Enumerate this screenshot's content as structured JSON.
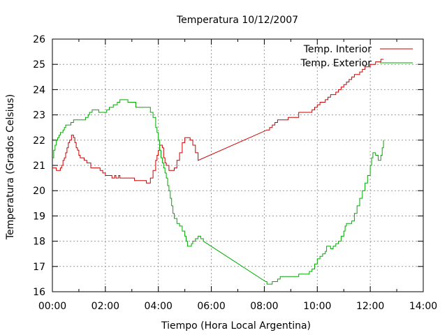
{
  "chart_data": {
    "type": "line",
    "title": "Temperatura 10/12/2007",
    "xlabel": "Tiempo (Hora Local Argentina)",
    "ylabel": "Temperatura (Grados Celsius)",
    "x_unit": "hours",
    "xlim": [
      0,
      14
    ],
    "ylim": [
      16,
      26
    ],
    "x_ticks": [
      0,
      2,
      4,
      6,
      8,
      10,
      12,
      14
    ],
    "x_tick_labels": [
      "00:00",
      "02:00",
      "04:00",
      "06:00",
      "08:00",
      "10:00",
      "12:00",
      "14:00"
    ],
    "y_ticks": [
      16,
      17,
      18,
      19,
      20,
      21,
      22,
      23,
      24,
      25,
      26
    ],
    "y_tick_labels": [
      "16",
      "17",
      "18",
      "19",
      "20",
      "21",
      "22",
      "23",
      "24",
      "25",
      "26"
    ],
    "grid": true,
    "legend_position": "top-right",
    "series": [
      {
        "name": "Temp. Interior",
        "color": "#cc0000",
        "step": true,
        "points": [
          [
            0.0,
            20.9
          ],
          [
            0.1,
            20.9
          ],
          [
            0.15,
            20.8
          ],
          [
            0.25,
            20.8
          ],
          [
            0.3,
            20.9
          ],
          [
            0.35,
            21.0
          ],
          [
            0.4,
            21.2
          ],
          [
            0.45,
            21.3
          ],
          [
            0.5,
            21.5
          ],
          [
            0.55,
            21.7
          ],
          [
            0.6,
            21.9
          ],
          [
            0.65,
            22.0
          ],
          [
            0.72,
            22.2
          ],
          [
            0.8,
            22.1
          ],
          [
            0.85,
            21.9
          ],
          [
            0.9,
            21.7
          ],
          [
            0.95,
            21.6
          ],
          [
            1.0,
            21.4
          ],
          [
            1.05,
            21.3
          ],
          [
            1.1,
            21.3
          ],
          [
            1.2,
            21.2
          ],
          [
            1.3,
            21.1
          ],
          [
            1.4,
            21.1
          ],
          [
            1.45,
            20.9
          ],
          [
            1.6,
            20.9
          ],
          [
            1.8,
            20.8
          ],
          [
            1.9,
            20.7
          ],
          [
            2.0,
            20.6
          ],
          [
            2.2,
            20.6
          ],
          [
            2.25,
            20.5
          ],
          [
            2.35,
            20.6
          ],
          [
            2.4,
            20.5
          ],
          [
            2.5,
            20.6
          ],
          [
            2.55,
            20.5
          ],
          [
            3.0,
            20.5
          ],
          [
            3.1,
            20.4
          ],
          [
            3.5,
            20.4
          ],
          [
            3.55,
            20.3
          ],
          [
            3.65,
            20.3
          ],
          [
            3.7,
            20.5
          ],
          [
            3.8,
            20.8
          ],
          [
            3.9,
            21.2
          ],
          [
            3.95,
            21.4
          ],
          [
            4.0,
            21.6
          ],
          [
            4.05,
            21.8
          ],
          [
            4.1,
            21.8
          ],
          [
            4.15,
            21.7
          ],
          [
            4.2,
            21.3
          ],
          [
            4.25,
            21.1
          ],
          [
            4.3,
            21.0
          ],
          [
            4.4,
            20.8
          ],
          [
            4.5,
            20.8
          ],
          [
            4.6,
            20.9
          ],
          [
            4.7,
            21.2
          ],
          [
            4.8,
            21.5
          ],
          [
            4.9,
            21.9
          ],
          [
            5.0,
            22.1
          ],
          [
            5.1,
            22.1
          ],
          [
            5.2,
            22.0
          ],
          [
            5.3,
            21.8
          ],
          [
            5.4,
            21.5
          ],
          [
            5.5,
            21.2
          ],
          [
            8.1,
            22.4
          ],
          [
            8.2,
            22.5
          ],
          [
            8.3,
            22.6
          ],
          [
            8.4,
            22.7
          ],
          [
            8.5,
            22.8
          ],
          [
            8.7,
            22.8
          ],
          [
            8.9,
            22.9
          ],
          [
            9.1,
            22.9
          ],
          [
            9.3,
            23.1
          ],
          [
            9.6,
            23.1
          ],
          [
            9.8,
            23.2
          ],
          [
            9.9,
            23.3
          ],
          [
            10.0,
            23.4
          ],
          [
            10.1,
            23.5
          ],
          [
            10.2,
            23.5
          ],
          [
            10.3,
            23.6
          ],
          [
            10.4,
            23.7
          ],
          [
            10.5,
            23.8
          ],
          [
            10.6,
            23.8
          ],
          [
            10.7,
            23.9
          ],
          [
            10.8,
            24.0
          ],
          [
            10.9,
            24.1
          ],
          [
            11.0,
            24.2
          ],
          [
            11.1,
            24.3
          ],
          [
            11.2,
            24.4
          ],
          [
            11.3,
            24.5
          ],
          [
            11.4,
            24.6
          ],
          [
            11.5,
            24.6
          ],
          [
            11.6,
            24.7
          ],
          [
            11.7,
            24.8
          ],
          [
            11.8,
            24.9
          ],
          [
            11.9,
            24.9
          ],
          [
            12.0,
            25.0
          ],
          [
            12.1,
            25.0
          ],
          [
            12.2,
            25.1
          ],
          [
            12.3,
            25.1
          ],
          [
            12.4,
            25.2
          ],
          [
            12.5,
            25.2
          ]
        ]
      },
      {
        "name": "Temp. Exterior",
        "color": "#00aa00",
        "step": true,
        "points": [
          [
            0.0,
            21.3
          ],
          [
            0.05,
            21.6
          ],
          [
            0.1,
            21.8
          ],
          [
            0.15,
            22.0
          ],
          [
            0.2,
            22.1
          ],
          [
            0.25,
            22.2
          ],
          [
            0.3,
            22.3
          ],
          [
            0.35,
            22.3
          ],
          [
            0.4,
            22.4
          ],
          [
            0.45,
            22.5
          ],
          [
            0.5,
            22.6
          ],
          [
            0.6,
            22.6
          ],
          [
            0.7,
            22.7
          ],
          [
            0.8,
            22.8
          ],
          [
            1.0,
            22.8
          ],
          [
            1.2,
            22.8
          ],
          [
            1.25,
            22.9
          ],
          [
            1.35,
            23.0
          ],
          [
            1.4,
            23.1
          ],
          [
            1.5,
            23.2
          ],
          [
            1.7,
            23.2
          ],
          [
            1.75,
            23.1
          ],
          [
            2.0,
            23.1
          ],
          [
            2.05,
            23.2
          ],
          [
            2.15,
            23.3
          ],
          [
            2.3,
            23.4
          ],
          [
            2.45,
            23.5
          ],
          [
            2.55,
            23.6
          ],
          [
            2.8,
            23.6
          ],
          [
            2.85,
            23.5
          ],
          [
            3.1,
            23.5
          ],
          [
            3.15,
            23.3
          ],
          [
            3.4,
            23.3
          ],
          [
            3.6,
            23.3
          ],
          [
            3.7,
            23.1
          ],
          [
            3.8,
            22.9
          ],
          [
            3.9,
            22.5
          ],
          [
            3.95,
            22.3
          ],
          [
            4.0,
            22.0
          ],
          [
            4.05,
            21.6
          ],
          [
            4.1,
            21.3
          ],
          [
            4.15,
            21.1
          ],
          [
            4.2,
            20.9
          ],
          [
            4.25,
            20.7
          ],
          [
            4.3,
            20.5
          ],
          [
            4.35,
            20.2
          ],
          [
            4.4,
            20.0
          ],
          [
            4.45,
            19.7
          ],
          [
            4.5,
            19.4
          ],
          [
            4.55,
            19.1
          ],
          [
            4.6,
            18.9
          ],
          [
            4.7,
            18.7
          ],
          [
            4.8,
            18.6
          ],
          [
            4.9,
            18.4
          ],
          [
            5.0,
            18.2
          ],
          [
            5.05,
            18.0
          ],
          [
            5.1,
            17.8
          ],
          [
            5.2,
            17.8
          ],
          [
            5.25,
            17.9
          ],
          [
            5.3,
            18.0
          ],
          [
            5.4,
            18.1
          ],
          [
            5.5,
            18.2
          ],
          [
            5.6,
            18.1
          ],
          [
            5.7,
            18.0
          ],
          [
            8.05,
            16.4
          ],
          [
            8.1,
            16.3
          ],
          [
            8.2,
            16.3
          ],
          [
            8.3,
            16.4
          ],
          [
            8.5,
            16.5
          ],
          [
            8.6,
            16.6
          ],
          [
            9.0,
            16.6
          ],
          [
            9.1,
            16.6
          ],
          [
            9.3,
            16.7
          ],
          [
            9.5,
            16.7
          ],
          [
            9.6,
            16.7
          ],
          [
            9.7,
            16.8
          ],
          [
            9.8,
            16.9
          ],
          [
            9.9,
            17.1
          ],
          [
            10.0,
            17.3
          ],
          [
            10.1,
            17.4
          ],
          [
            10.2,
            17.5
          ],
          [
            10.3,
            17.6
          ],
          [
            10.35,
            17.8
          ],
          [
            10.4,
            17.8
          ],
          [
            10.5,
            17.7
          ],
          [
            10.6,
            17.8
          ],
          [
            10.7,
            17.9
          ],
          [
            10.8,
            18.0
          ],
          [
            10.9,
            18.2
          ],
          [
            11.0,
            18.4
          ],
          [
            11.05,
            18.6
          ],
          [
            11.1,
            18.7
          ],
          [
            11.2,
            18.7
          ],
          [
            11.3,
            18.8
          ],
          [
            11.4,
            19.1
          ],
          [
            11.5,
            19.4
          ],
          [
            11.6,
            19.7
          ],
          [
            11.7,
            20.0
          ],
          [
            11.8,
            20.3
          ],
          [
            11.9,
            20.6
          ],
          [
            12.0,
            21.0
          ],
          [
            12.05,
            21.3
          ],
          [
            12.1,
            21.5
          ],
          [
            12.15,
            21.5
          ],
          [
            12.2,
            21.4
          ],
          [
            12.3,
            21.2
          ],
          [
            12.4,
            21.4
          ],
          [
            12.45,
            21.7
          ],
          [
            12.5,
            22.0
          ]
        ]
      }
    ]
  }
}
